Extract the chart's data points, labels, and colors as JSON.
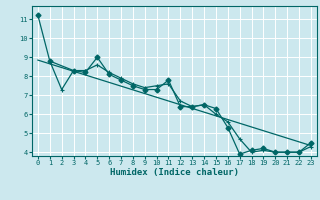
{
  "xlabel": "Humidex (Indice chaleur)",
  "bg_color": "#cce8ee",
  "grid_color": "#ffffff",
  "line_color": "#006666",
  "xlim": [
    -0.5,
    23.5
  ],
  "ylim": [
    3.8,
    11.7
  ],
  "yticks": [
    4,
    5,
    6,
    7,
    8,
    9,
    10,
    11
  ],
  "xticks": [
    0,
    1,
    2,
    3,
    4,
    5,
    6,
    7,
    8,
    9,
    10,
    11,
    12,
    13,
    14,
    15,
    16,
    17,
    18,
    19,
    20,
    21,
    22,
    23
  ],
  "jagged_x": [
    0,
    1,
    3,
    4,
    5,
    6,
    7,
    8,
    9,
    10,
    11,
    12,
    13,
    14,
    15,
    16,
    17,
    18,
    19,
    20,
    21,
    22,
    23
  ],
  "jagged_y": [
    11.2,
    8.8,
    8.3,
    8.2,
    9.0,
    8.1,
    7.8,
    7.5,
    7.3,
    7.3,
    7.8,
    6.4,
    6.4,
    6.5,
    6.3,
    5.3,
    3.9,
    4.1,
    4.2,
    4.0,
    4.0,
    4.0,
    4.5
  ],
  "smooth_x": [
    1,
    2,
    3,
    4,
    5,
    6,
    7,
    8,
    9,
    10,
    11,
    12,
    13,
    14,
    15,
    16,
    17,
    18,
    19,
    20,
    21,
    22,
    23
  ],
  "smooth_y": [
    8.8,
    7.3,
    8.3,
    8.3,
    8.6,
    8.2,
    7.9,
    7.6,
    7.4,
    7.5,
    7.6,
    6.7,
    6.4,
    6.5,
    6.0,
    5.6,
    4.7,
    4.0,
    4.1,
    4.0,
    4.0,
    4.0,
    4.3
  ],
  "trend_x": [
    0,
    23
  ],
  "trend_y": [
    8.85,
    4.35
  ]
}
